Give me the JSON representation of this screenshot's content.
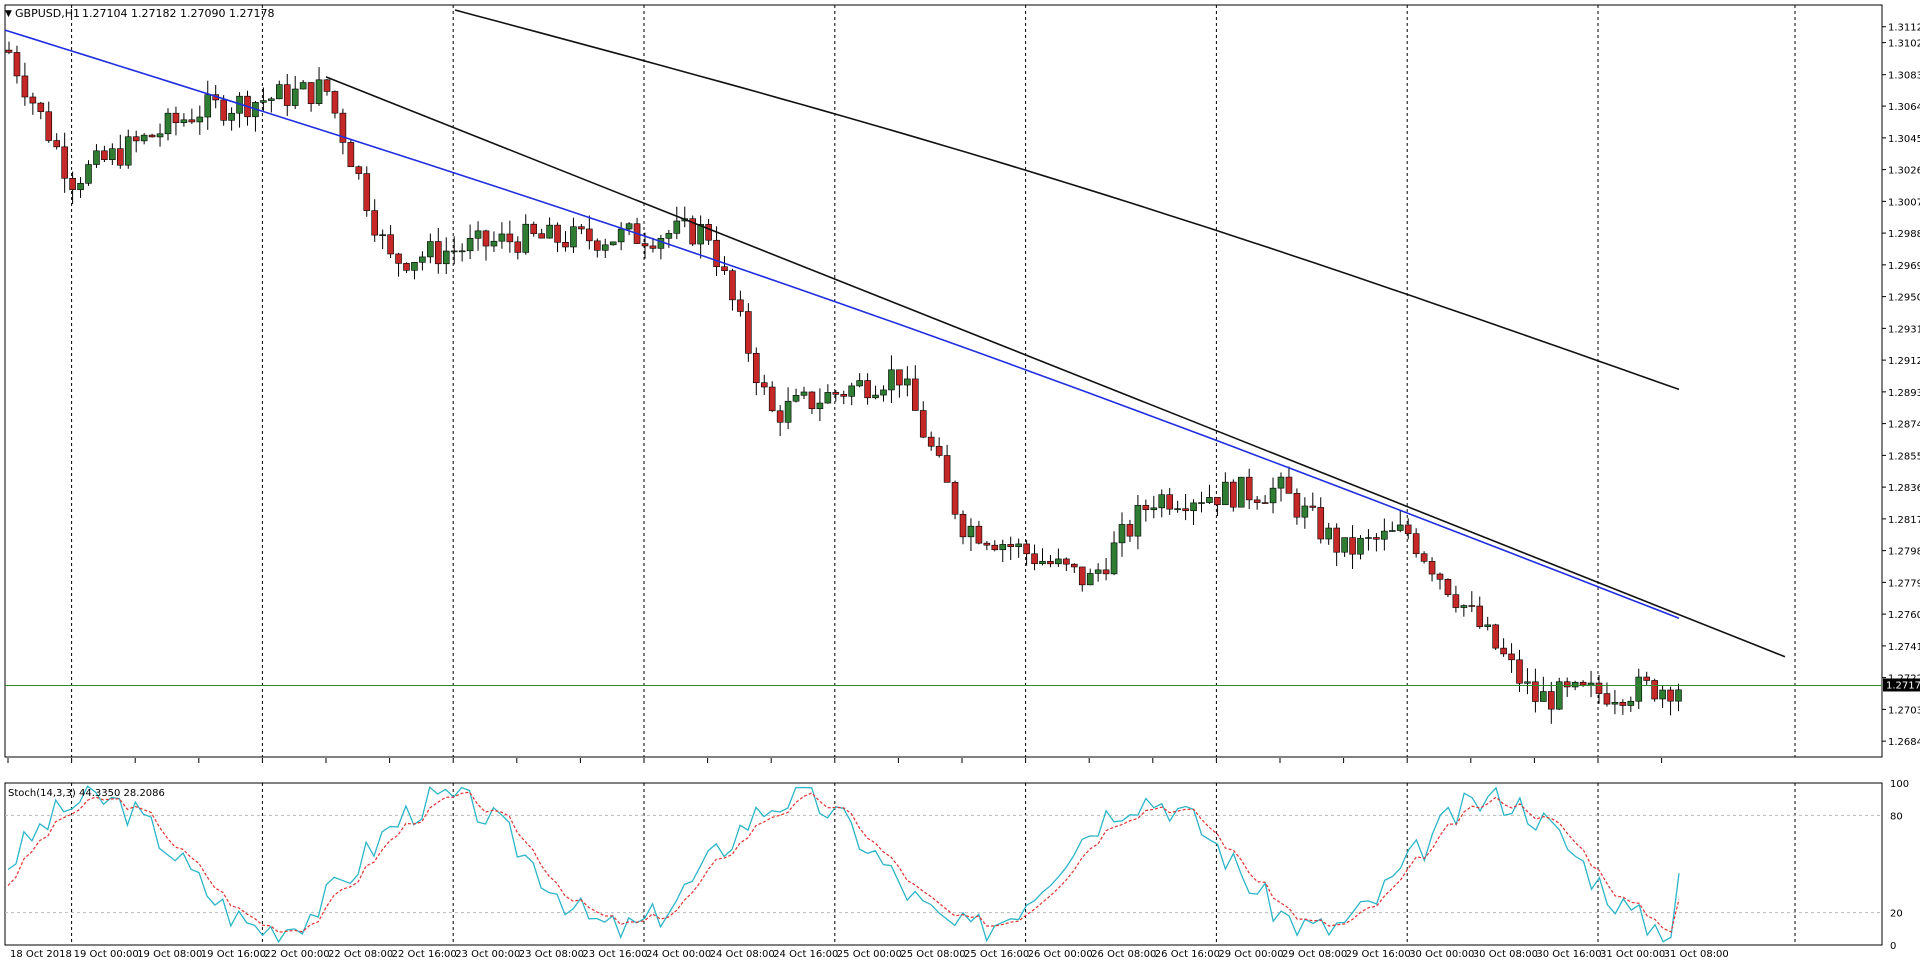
{
  "header": {
    "symbol": "GBPUSD,H1",
    "ohlc": "1.27104 1.27182 1.27090 1.27178"
  },
  "price_axis": {
    "ticks": [
      "1.31120",
      "1.31025",
      "1.30833",
      "1.30645",
      "1.30455",
      "1.30265",
      "1.30075",
      "1.29885",
      "1.29695",
      "1.29505",
      "1.29315",
      "1.29125",
      "1.28935",
      "1.28745",
      "1.28555",
      "1.28365",
      "1.28175",
      "1.27985",
      "1.27795",
      "1.27605",
      "1.27415",
      "1.27225",
      "1.27035",
      "1.26845"
    ],
    "current_price": "1.27178"
  },
  "time_axis": {
    "labels": [
      "18 Oct 2018",
      "19 Oct 00:00",
      "19 Oct 08:00",
      "19 Oct 16:00",
      "22 Oct 00:00",
      "22 Oct 08:00",
      "22 Oct 16:00",
      "23 Oct 00:00",
      "23 Oct 08:00",
      "23 Oct 16:00",
      "24 Oct 00:00",
      "24 Oct 08:00",
      "24 Oct 16:00",
      "25 Oct 00:00",
      "25 Oct 08:00",
      "25 Oct 16:00",
      "26 Oct 00:00",
      "26 Oct 08:00",
      "26 Oct 16:00",
      "29 Oct 00:00",
      "29 Oct 08:00",
      "29 Oct 16:00",
      "30 Oct 00:00",
      "30 Oct 08:00",
      "30 Oct 16:00",
      "31 Oct 00:00",
      "31 Oct 08:00"
    ]
  },
  "stoch": {
    "title": "Stoch(14,3,3) 44.3350 28.2086",
    "ticks": [
      "100",
      "80",
      "20",
      "0"
    ]
  },
  "colors": {
    "bull": "#2e7d32",
    "bear": "#c62828",
    "sma_fast": "#1f2ee0",
    "sma_slow": "#111111",
    "trendline": "#111111",
    "price_line": "#2e8b2e",
    "stoch_main": "#2bb5c8",
    "stoch_signal": "#e23030"
  },
  "chart_data": {
    "type": "candlestick",
    "symbol": "GBPUSD",
    "timeframe": "H1",
    "ylim": [
      1.2675,
      1.3125
    ],
    "time_range": [
      "18 Oct 2018",
      "31 Oct 08:00"
    ],
    "price_path_keypoints": [
      {
        "t": "18 Oct 2018",
        "price": 1.3098
      },
      {
        "t": "19 Oct 00:00",
        "price": 1.3021
      },
      {
        "t": "19 Oct 16:00",
        "price": 1.3062
      },
      {
        "t": "22 Oct 08:00",
        "price": 1.3075
      },
      {
        "t": "22 Oct 16:00",
        "price": 1.2972
      },
      {
        "t": "23 Oct 08:00",
        "price": 1.2985
      },
      {
        "t": "23 Oct 16:00",
        "price": 1.2985
      },
      {
        "t": "24 Oct 08:00",
        "price": 1.299
      },
      {
        "t": "24 Oct 16:00",
        "price": 1.288
      },
      {
        "t": "25 Oct 08:00",
        "price": 1.2905
      },
      {
        "t": "25 Oct 16:00",
        "price": 1.2815
      },
      {
        "t": "26 Oct 08:00",
        "price": 1.278
      },
      {
        "t": "26 Oct 16:00",
        "price": 1.283
      },
      {
        "t": "29 Oct 08:00",
        "price": 1.2835
      },
      {
        "t": "29 Oct 16:00",
        "price": 1.2798
      },
      {
        "t": "30 Oct 00:00",
        "price": 1.281
      },
      {
        "t": "30 Oct 08:00",
        "price": 1.276
      },
      {
        "t": "30 Oct 16:00",
        "price": 1.271
      },
      {
        "t": "31 Oct 08:00",
        "price": 1.27178
      }
    ],
    "overlays": [
      {
        "type": "moving_average",
        "color": "blue",
        "from": 1.311,
        "to": 1.2758
      },
      {
        "type": "moving_average",
        "color": "black",
        "from": 1.3122,
        "to": 1.2895
      },
      {
        "type": "trendline",
        "from": {
          "t": "22 Oct 08:00",
          "price": 1.3082
        },
        "to": {
          "t": "31 Oct 08:00+",
          "price": 1.2735
        }
      },
      {
        "type": "horizontal_line",
        "price": 1.27178
      }
    ],
    "stochastic": {
      "params": [
        14,
        3,
        3
      ],
      "main": 44.335,
      "signal": 28.2086,
      "levels": [
        80,
        20
      ],
      "ylim": [
        0,
        100
      ]
    }
  }
}
